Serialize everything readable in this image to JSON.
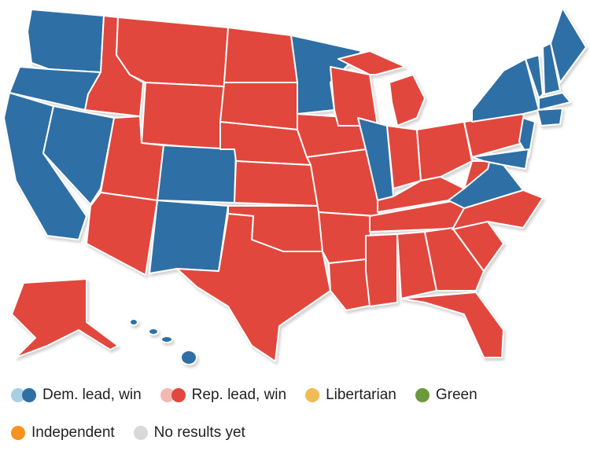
{
  "legend": {
    "items": [
      {
        "label": "Dem. lead, win",
        "colors": [
          "#a9cfe5",
          "#2f6fa6"
        ]
      },
      {
        "label": "Rep. lead, win",
        "colors": [
          "#f2b9b3",
          "#e1473d"
        ]
      },
      {
        "label": "Libertarian",
        "colors": [
          "#f1bb55"
        ]
      },
      {
        "label": "Green",
        "colors": [
          "#6a9a3d"
        ]
      },
      {
        "label": "Independent",
        "colors": [
          "#f7931e"
        ]
      },
      {
        "label": "No results yet",
        "colors": [
          "#d8d8d8"
        ]
      }
    ]
  }
}
